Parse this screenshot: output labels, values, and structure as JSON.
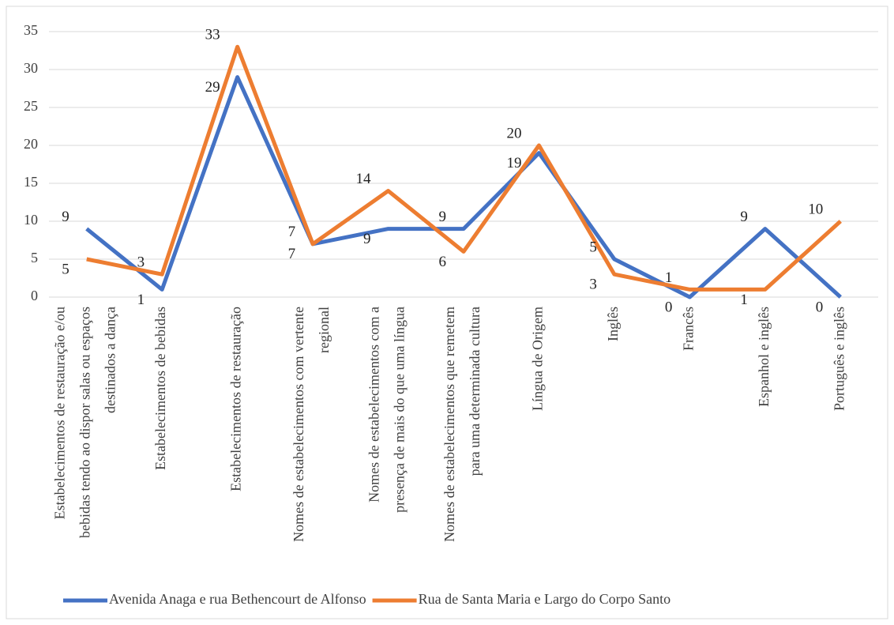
{
  "chart_data": {
    "type": "line",
    "categories": [
      "Estabelecimentos de restauração e/ou bebidas tendo ao dispor salas ou espaços destinados a dança",
      "Estabelecimentos de bebidas",
      "Estabelecimentos de restauração",
      "Nomes de estabelecimentos com vertente regional",
      "Nomes de estabelecimentos com a presença de mais do que uma língua",
      "Nomes de estabelecimentos que remetem para uma determinada cultura",
      "Língua de Origem",
      "Inglês",
      "Francês",
      "Espanhol e inglês",
      "Português e inglês"
    ],
    "series": [
      {
        "name": "Avenida Anaga e rua Bethencourt de Alfonso",
        "color": "#4472c4",
        "values": [
          9,
          1,
          29,
          7,
          9,
          9,
          19,
          5,
          0,
          9,
          0
        ]
      },
      {
        "name": "Rua de Santa Maria e Largo do Corpo Santo",
        "color": "#ed7d31",
        "values": [
          5,
          3,
          33,
          7,
          14,
          6,
          20,
          3,
          1,
          1,
          10
        ]
      }
    ],
    "ylim": [
      0,
      35
    ],
    "yticks": [
      0,
      5,
      10,
      15,
      20,
      25,
      30,
      35
    ],
    "grid": true,
    "legend": "bottom"
  }
}
